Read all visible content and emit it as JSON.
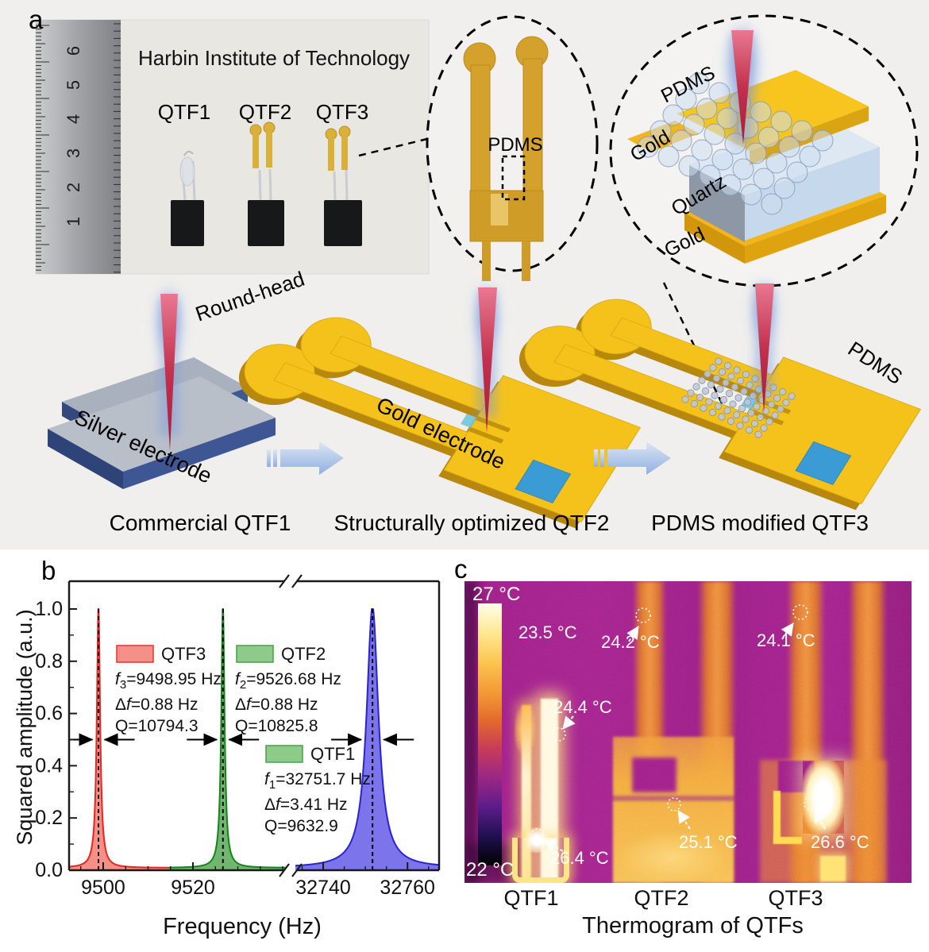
{
  "panel_labels": {
    "a": "a",
    "b": "b",
    "c": "c"
  },
  "panel_a": {
    "photo": {
      "title": "Harbin Institute of Technology",
      "devices": [
        "QTF1",
        "QTF2",
        "QTF3"
      ],
      "ruler_numbers": [
        "6",
        "5",
        "4",
        "3",
        "2",
        "1"
      ]
    },
    "inset_photo": {
      "pdms": "PDMS"
    },
    "inset_3d": {
      "pdms": "PDMS",
      "gold_top": "Gold",
      "quartz": "Quartz",
      "gold_bottom": "Gold"
    },
    "flow": {
      "round_head": "Round-head",
      "silver_electrode": "Silver electrode",
      "gold_electrode": "Gold electrode",
      "pdms": "PDMS",
      "caption_qtf1": "Commercial QTF1",
      "caption_qtf2": "Structurally optimized QTF2",
      "caption_qtf3": "PDMS modified QTF3"
    },
    "palette": {
      "gold": "#f5c21c",
      "silver": "#b9bfc9",
      "laser_red": "#c2314e",
      "pad_blue": "#3a9bd5"
    }
  },
  "chart_data": {
    "type": "line",
    "title": "",
    "xlabel": "Frequency (Hz)",
    "ylabel": "Squared amplitude (a.u.)",
    "ylim": [
      0,
      1.0
    ],
    "yticks_major": [
      0,
      0.2,
      0.4,
      0.6,
      0.8,
      1.0
    ],
    "axis_break": true,
    "grid": false,
    "segments": [
      {
        "f_min": 9492.4,
        "f_max": 9540.7,
        "ticks": [
          9500,
          9520
        ],
        "minor_step": 5
      },
      {
        "f_min": 32733.4,
        "f_max": 32767.5,
        "ticks": [
          32740,
          32760
        ],
        "minor_step": 5
      }
    ],
    "series": [
      {
        "name": "QTF3",
        "segment": 0,
        "peak_hz": 9498.95,
        "fwhm_hz": 0.88,
        "q": 10794.3,
        "stroke": "#e62520",
        "fill": "#f59088",
        "draw_from": 9492.4,
        "draw_to": 9514.6
      },
      {
        "name": "QTF2",
        "segment": 0,
        "peak_hz": 9526.68,
        "fwhm_hz": 0.88,
        "q": 10825.8,
        "stroke": "#17831c",
        "fill": "#70b66e",
        "draw_from": 9514.6,
        "draw_to": 9540.7
      },
      {
        "name": "QTF1",
        "segment": 1,
        "peak_hz": 32751.7,
        "fwhm_hz": 3.41,
        "q": 9632.9,
        "stroke": "#2b23cc",
        "fill": "#7b74ea",
        "draw_from": 32733.4,
        "draw_to": 32767.5
      }
    ],
    "legends": [
      {
        "series": "QTF3",
        "swatch_fill": "#f59088",
        "swatch_stroke": "#e43430",
        "f_sym": "f",
        "f_sub": "3",
        "f_rest": "=9498.95 Hz",
        "df": "Δf=0.88 Hz",
        "q": "Q=10794.3"
      },
      {
        "series": "QTF2",
        "swatch_fill": "#8ecb8a",
        "swatch_stroke": "#4a9e4a",
        "f_sym": "f",
        "f_sub": "2",
        "f_rest": "=9526.68 Hz",
        "df": "Δf=0.88 Hz",
        "q": "Q=10825.8"
      },
      {
        "series": "QTF1",
        "swatch_fill": "#8ecb8a",
        "swatch_stroke": "#4a9e4a",
        "f_sym": "f",
        "f_sub": "1",
        "f_rest": "=32751.7 Hz",
        "df": "Δf=3.41 Hz",
        "q": "Q=9632.9"
      }
    ]
  },
  "panel_c": {
    "colorbar": {
      "top": "27 °C",
      "bottom": "22 °C",
      "colors": [
        "#fffde8",
        "#ffe685",
        "#fcbf4a",
        "#f29030",
        "#e06028",
        "#c03550",
        "#8c2378",
        "#53197c",
        "#1c0e48",
        "#000000"
      ]
    },
    "readings": [
      {
        "value": "23.5 °C"
      },
      {
        "value": "24.2 °C"
      },
      {
        "value": "24.1 °C"
      },
      {
        "value": "24.4 °C"
      },
      {
        "value": "26.4 °C"
      },
      {
        "value": "25.1 °C"
      },
      {
        "value": "26.6 °C"
      }
    ],
    "device_labels": [
      "QTF1",
      "QTF2",
      "QTF3"
    ],
    "caption": "Thermogram of QTFs"
  }
}
